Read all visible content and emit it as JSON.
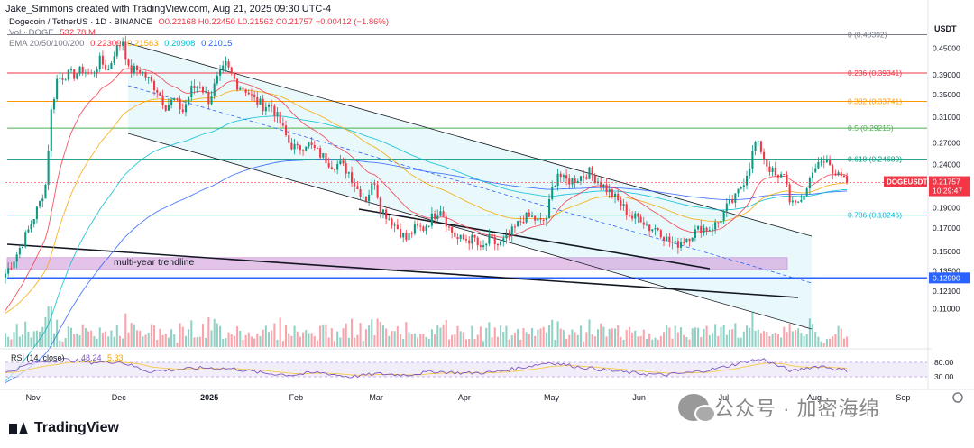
{
  "header": {
    "author": "Jake_Simmons created with TradingView.com, Aug 21, 2025 09:30 UTC-4",
    "symbol": "Dogecoin / TetherUS · 1D · BINANCE",
    "ohlc": "O0.22168 H0.22450 L0.21562 C0.21757 −0.00412 (−1.86%)",
    "vol_label": "Vol · DOGE",
    "vol_value": "532.78 M",
    "ema_label": "EMA 20/50/100/200",
    "ema_values": [
      "0.22309",
      "0.21563",
      "0.20908",
      "0.21015"
    ]
  },
  "axis": {
    "currency": "USDT",
    "price_ticks": [
      "0.45000",
      "0.39000",
      "0.35000",
      "0.31000",
      "0.27000",
      "0.24000",
      "0.21000",
      "0.19000",
      "0.17000",
      "0.15000",
      "0.13500",
      "0.12100",
      "0.11000"
    ],
    "price_tick_values": [
      0.45,
      0.39,
      0.35,
      0.31,
      0.27,
      0.24,
      0.21,
      0.19,
      0.17,
      0.15,
      0.135,
      0.121,
      0.11
    ],
    "last_price_badge": "DOGEUSDT",
    "last_price": "0.21757",
    "countdown": "10:29:47",
    "support_badge": "0.12990",
    "rsi_ticks": [
      "80.00",
      "30.00"
    ],
    "time_labels": [
      "Nov",
      "Dec",
      "2025",
      "Feb",
      "Mar",
      "Apr",
      "May",
      "Jun",
      "Jul",
      "Aug",
      "Sep"
    ]
  },
  "rsi": {
    "label": "RSI (14, close)",
    "value": "48.24",
    "value2": "5.33",
    "overbought": 70,
    "oversold": 30
  },
  "fib_levels": [
    {
      "label": "0 (0.48392)",
      "value": 0.48392,
      "color": "#787b86"
    },
    {
      "label": "0.236 (0.39341)",
      "value": 0.39341,
      "color": "#f23645"
    },
    {
      "label": "0.382 (0.33741)",
      "value": 0.33741,
      "color": "#ff9800"
    },
    {
      "label": "0.5 (0.29215)",
      "value": 0.29215,
      "color": "#4caf50"
    },
    {
      "label": "0.618 (0.24689)",
      "value": 0.24689,
      "color": "#089981"
    },
    {
      "label": "0.786 (0.18246)",
      "value": 0.18246,
      "color": "#00bcd4"
    }
  ],
  "annotations": {
    "trendline": "multi-year trendline"
  },
  "colors": {
    "up": "#089981",
    "down": "#f23645",
    "fib_1": "#00bcd4",
    "support_line": "#2962ff",
    "zone": "#ce93d8",
    "channel_fill": "#e0f7fa",
    "rsi_line": "#7e57c2",
    "rsi_ma": "#f7c948"
  },
  "watermark": "公众号 · 加密海绵",
  "brand": "TradingView",
  "chart_data": {
    "type": "candlestick",
    "title": "Dogecoin / TetherUS · 1D · BINANCE",
    "xlabel": "",
    "ylabel": "USDT",
    "x_range": [
      "2024-10-23",
      "2025-09-08"
    ],
    "y_scale": "log",
    "ylim": [
      0.105,
      0.49
    ],
    "month_ticks": [
      {
        "label": "Nov",
        "day": 9
      },
      {
        "label": "Dec",
        "day": 39
      },
      {
        "label": "2025",
        "day": 70
      },
      {
        "label": "Feb",
        "day": 101
      },
      {
        "label": "Mar",
        "day": 129
      },
      {
        "label": "Apr",
        "day": 160
      },
      {
        "label": "May",
        "day": 190
      },
      {
        "label": "Jun",
        "day": 221
      },
      {
        "label": "Jul",
        "day": 251
      },
      {
        "label": "Aug",
        "day": 282
      },
      {
        "label": "Sep",
        "day": 313
      }
    ],
    "close_anchors": [
      [
        0,
        0.133
      ],
      [
        4,
        0.148
      ],
      [
        8,
        0.168
      ],
      [
        12,
        0.195
      ],
      [
        14,
        0.215
      ],
      [
        16,
        0.32
      ],
      [
        18,
        0.38
      ],
      [
        21,
        0.39
      ],
      [
        24,
        0.39
      ],
      [
        27,
        0.4
      ],
      [
        30,
        0.39
      ],
      [
        33,
        0.42
      ],
      [
        36,
        0.4
      ],
      [
        38,
        0.44
      ],
      [
        41,
        0.47
      ],
      [
        43,
        0.4
      ],
      [
        47,
        0.4
      ],
      [
        50,
        0.38
      ],
      [
        53,
        0.36
      ],
      [
        56,
        0.33
      ],
      [
        59,
        0.34
      ],
      [
        62,
        0.32
      ],
      [
        65,
        0.36
      ],
      [
        68,
        0.37
      ],
      [
        71,
        0.34
      ],
      [
        74,
        0.38
      ],
      [
        77,
        0.41
      ],
      [
        79,
        0.39
      ],
      [
        81,
        0.37
      ],
      [
        84,
        0.36
      ],
      [
        87,
        0.34
      ],
      [
        90,
        0.33
      ],
      [
        93,
        0.33
      ],
      [
        96,
        0.3
      ],
      [
        99,
        0.27
      ],
      [
        102,
        0.26
      ],
      [
        105,
        0.27
      ],
      [
        108,
        0.26
      ],
      [
        111,
        0.25
      ],
      [
        114,
        0.24
      ],
      [
        117,
        0.24
      ],
      [
        120,
        0.23
      ],
      [
        123,
        0.21
      ],
      [
        126,
        0.2
      ],
      [
        129,
        0.22
      ],
      [
        131,
        0.19
      ],
      [
        134,
        0.18
      ],
      [
        137,
        0.17
      ],
      [
        140,
        0.16
      ],
      [
        143,
        0.17
      ],
      [
        146,
        0.17
      ],
      [
        149,
        0.18
      ],
      [
        152,
        0.19
      ],
      [
        155,
        0.17
      ],
      [
        158,
        0.16
      ],
      [
        161,
        0.16
      ],
      [
        164,
        0.16
      ],
      [
        166,
        0.15
      ],
      [
        169,
        0.16
      ],
      [
        172,
        0.155
      ],
      [
        175,
        0.16
      ],
      [
        178,
        0.17
      ],
      [
        181,
        0.18
      ],
      [
        184,
        0.18
      ],
      [
        187,
        0.175
      ],
      [
        189,
        0.18
      ],
      [
        191,
        0.21
      ],
      [
        193,
        0.23
      ],
      [
        195,
        0.22
      ],
      [
        198,
        0.22
      ],
      [
        201,
        0.225
      ],
      [
        204,
        0.23
      ],
      [
        207,
        0.22
      ],
      [
        210,
        0.21
      ],
      [
        213,
        0.2
      ],
      [
        216,
        0.19
      ],
      [
        219,
        0.18
      ],
      [
        222,
        0.18
      ],
      [
        225,
        0.17
      ],
      [
        228,
        0.17
      ],
      [
        231,
        0.16
      ],
      [
        234,
        0.155
      ],
      [
        237,
        0.16
      ],
      [
        240,
        0.165
      ],
      [
        243,
        0.17
      ],
      [
        246,
        0.17
      ],
      [
        249,
        0.175
      ],
      [
        252,
        0.19
      ],
      [
        255,
        0.2
      ],
      [
        258,
        0.22
      ],
      [
        260,
        0.24
      ],
      [
        262,
        0.27
      ],
      [
        264,
        0.26
      ],
      [
        266,
        0.24
      ],
      [
        268,
        0.23
      ],
      [
        270,
        0.22
      ],
      [
        272,
        0.23
      ],
      [
        274,
        0.2
      ],
      [
        276,
        0.19
      ],
      [
        278,
        0.2
      ],
      [
        280,
        0.21
      ],
      [
        282,
        0.235
      ],
      [
        285,
        0.24
      ],
      [
        287,
        0.245
      ],
      [
        289,
        0.23
      ],
      [
        291,
        0.235
      ],
      [
        293,
        0.22
      ],
      [
        294,
        0.21757
      ]
    ],
    "volume_color_note": "volume bars colored by candle direction",
    "rsi_anchors": [
      [
        0,
        40
      ],
      [
        10,
        70
      ],
      [
        20,
        78
      ],
      [
        30,
        70
      ],
      [
        40,
        72
      ],
      [
        50,
        45
      ],
      [
        60,
        50
      ],
      [
        70,
        55
      ],
      [
        80,
        52
      ],
      [
        90,
        40
      ],
      [
        100,
        35
      ],
      [
        110,
        42
      ],
      [
        120,
        30
      ],
      [
        130,
        38
      ],
      [
        140,
        35
      ],
      [
        150,
        45
      ],
      [
        160,
        40
      ],
      [
        170,
        42
      ],
      [
        180,
        55
      ],
      [
        190,
        70
      ],
      [
        200,
        58
      ],
      [
        210,
        48
      ],
      [
        220,
        40
      ],
      [
        230,
        35
      ],
      [
        240,
        42
      ],
      [
        250,
        55
      ],
      [
        260,
        75
      ],
      [
        265,
        78
      ],
      [
        270,
        60
      ],
      [
        275,
        45
      ],
      [
        280,
        55
      ],
      [
        285,
        60
      ],
      [
        290,
        52
      ],
      [
        294,
        48
      ]
    ]
  }
}
